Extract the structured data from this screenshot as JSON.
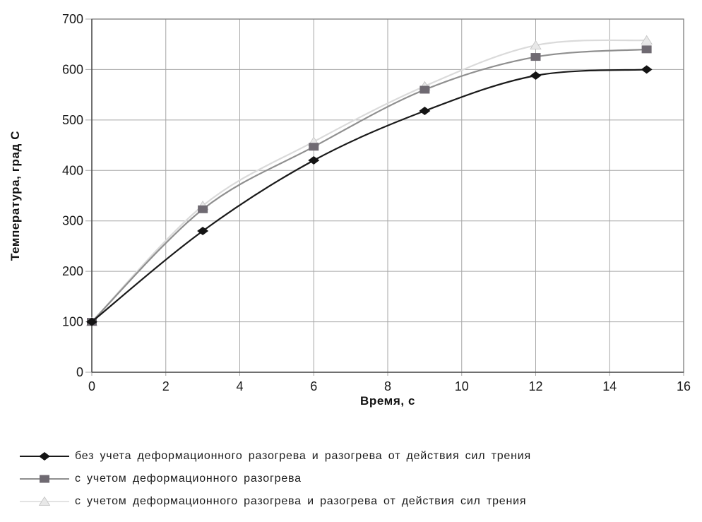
{
  "chart_data": {
    "type": "line",
    "title": "",
    "xlabel": "Время, с",
    "ylabel": "Температура, град С",
    "xlim": [
      0,
      16
    ],
    "ylim": [
      0,
      700
    ],
    "x_ticks": [
      0,
      2,
      4,
      6,
      8,
      10,
      12,
      14,
      16
    ],
    "y_ticks": [
      0,
      100,
      200,
      300,
      400,
      500,
      600,
      700
    ],
    "grid": true,
    "legend_position": "bottom-left",
    "x": [
      0,
      3,
      6,
      9,
      12,
      15
    ],
    "series": [
      {
        "label": "без учета деформационного разогрева и разогрева от действия сил трения",
        "marker": "diamond",
        "line_color": "#1a1a1a",
        "marker_color": "#141414",
        "values": [
          100,
          280,
          420,
          518,
          588,
          600
        ]
      },
      {
        "label": "с учетом деформационного разогрева",
        "marker": "square",
        "line_color": "#8f8f8f",
        "marker_color": "#6f6a72",
        "values": [
          100,
          323,
          447,
          560,
          625,
          640
        ]
      },
      {
        "label": "с учетом деформационного разогрева и разогрева от действия сил трения",
        "marker": "triangle",
        "line_color": "#dadada",
        "marker_color": "#e8e8e8",
        "values": [
          100,
          330,
          457,
          567,
          648,
          658
        ]
      }
    ],
    "colors": {
      "grid": "#a6a6a6",
      "border": "#7d7d7d",
      "tick_text": "#1a1a1a",
      "background": "#ffffff"
    }
  }
}
